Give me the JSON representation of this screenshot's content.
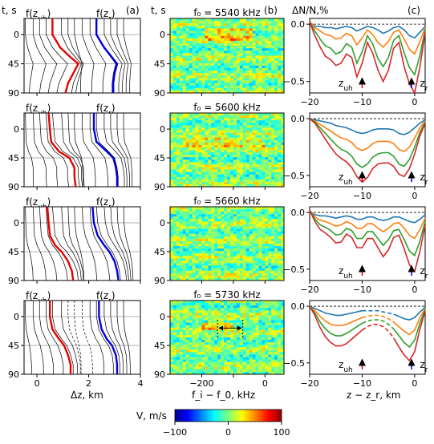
{
  "chart_data": [
    {
      "type": "line",
      "panel": "a",
      "column_label": "(a)",
      "ylabel": "t, s",
      "xlabel": "Δz, km",
      "xlim": [
        -0.5,
        4
      ],
      "ylim": [
        90,
        -25
      ],
      "x_ticks": [
        "0",
        "2",
        "4"
      ],
      "y_ticks": [
        "0",
        "45",
        "90"
      ],
      "legend": [
        {
          "label": "f(z_uh)",
          "color": "#e60000"
        },
        {
          "label": "f(z_r)",
          "color": "#0000dd"
        }
      ],
      "series_note": "black curves: altitude offsets of sounding frequencies; red: upper-hybrid level; blue: reflection level",
      "rows": [
        {
          "z_uh": {
            "t": [
              -25,
              0,
              20,
              35,
              45,
              60,
              75,
              90
            ],
            "x": [
              0.6,
              0.6,
              0.9,
              1.3,
              1.6,
              1.4,
              1.2,
              1.1
            ]
          },
          "z_r": {
            "t": [
              -25,
              0,
              20,
              35,
              45,
              60,
              75,
              90
            ],
            "x": [
              2.3,
              2.3,
              2.6,
              2.9,
              3.1,
              3.0,
              2.95,
              2.95
            ]
          }
        },
        {
          "z_uh": {
            "t": [
              -25,
              0,
              20,
              35,
              45,
              60,
              75,
              90
            ],
            "x": [
              0.45,
              0.5,
              0.55,
              0.85,
              1.25,
              1.45,
              1.45,
              1.5
            ]
          },
          "z_r": {
            "t": [
              -25,
              0,
              20,
              35,
              45,
              60,
              75,
              90
            ],
            "x": [
              2.2,
              2.2,
              2.3,
              2.7,
              2.95,
              3.05,
              3.1,
              3.1
            ]
          }
        },
        {
          "z_uh": {
            "t": [
              -25,
              0,
              20,
              35,
              45,
              60,
              75,
              90
            ],
            "x": [
              0.4,
              0.45,
              0.5,
              0.7,
              0.95,
              1.2,
              1.35,
              1.4
            ]
          },
          "z_r": {
            "t": [
              -25,
              0,
              20,
              35,
              45,
              60,
              75,
              90
            ],
            "x": [
              2.15,
              2.2,
              2.35,
              2.6,
              2.8,
              3.0,
              3.1,
              3.15
            ]
          }
        },
        {
          "z_uh": {
            "t": [
              -25,
              0,
              20,
              35,
              45,
              60,
              75,
              90
            ],
            "x": [
              0.5,
              0.5,
              0.6,
              0.85,
              1.05,
              1.2,
              1.3,
              1.3
            ]
          },
          "z_r": {
            "t": [
              -25,
              0,
              20,
              35,
              45,
              60,
              75,
              90
            ],
            "x": [
              2.4,
              2.4,
              2.5,
              2.7,
              2.9,
              3.05,
              3.1,
              3.1
            ]
          }
        }
      ]
    },
    {
      "type": "heatmap",
      "panel": "b",
      "column_label": "(b)",
      "ylabel": "t, s",
      "xlabel": "f_i − f_0, kHz",
      "xlim": [
        -300,
        60
      ],
      "ylim": [
        90,
        -25
      ],
      "x_ticks": [
        "−200",
        "0"
      ],
      "y_ticks": [
        "0",
        "45",
        "90"
      ],
      "titles": [
        "f₀ = 5540 kHz",
        "f₀ = 5600 kHz",
        "f₀ = 5660 kHz",
        "f₀ = 5730 kHz"
      ],
      "colorbar": {
        "label": "V, m/s",
        "min": -100,
        "max": 100,
        "ticks": [
          "−100",
          "0",
          "100"
        ]
      },
      "annotation": "double arrow spanning f_i − f_0 ≈ −150 to −70 kHz at t ≈ 18 s (row 4)"
    },
    {
      "type": "line",
      "panel": "c",
      "column_label": "(c)",
      "ylabel": "ΔN/N,%",
      "xlabel": "z − z_r, km",
      "xlim": [
        -20,
        2
      ],
      "ylim": [
        0.05,
        -0.6
      ],
      "x_ticks": [
        "−20",
        "−10",
        "0"
      ],
      "y_ticks": [
        "0.0",
        "−0.5"
      ],
      "markers": [
        {
          "label": "z_uh",
          "color": "#e60000"
        },
        {
          "label": "z_r",
          "color": "#0000dd"
        }
      ],
      "series_colors": [
        "#1f77b4",
        "#ff7f0e",
        "#2ca02c",
        "#d62728"
      ],
      "x": [
        -20,
        -19,
        -18,
        -17,
        -16,
        -15,
        -14,
        -13,
        -12,
        -11,
        -10,
        -9,
        -8,
        -7,
        -6,
        -5,
        -4,
        -3,
        -2,
        -1,
        0,
        1,
        2
      ],
      "rows": [
        {
          "series": [
            [
              0.02,
              -0.02,
              -0.02,
              -0.03,
              -0.03,
              -0.04,
              -0.03,
              -0.02,
              -0.03,
              -0.06,
              -0.04,
              -0.02,
              -0.03,
              -0.05,
              -0.08,
              -0.06,
              -0.03,
              -0.02,
              -0.05,
              -0.1,
              -0.12,
              -0.07,
              -0.02
            ],
            [
              0.02,
              -0.03,
              -0.06,
              -0.09,
              -0.1,
              -0.13,
              -0.12,
              -0.08,
              -0.1,
              -0.18,
              -0.12,
              -0.05,
              -0.09,
              -0.16,
              -0.2,
              -0.15,
              -0.07,
              -0.05,
              -0.13,
              -0.22,
              -0.26,
              -0.15,
              -0.03
            ],
            [
              0.02,
              -0.06,
              -0.13,
              -0.19,
              -0.21,
              -0.26,
              -0.24,
              -0.17,
              -0.2,
              -0.34,
              -0.24,
              -0.1,
              -0.17,
              -0.3,
              -0.37,
              -0.29,
              -0.14,
              -0.1,
              -0.25,
              -0.38,
              -0.44,
              -0.27,
              -0.05
            ],
            [
              0.02,
              -0.1,
              -0.2,
              -0.28,
              -0.31,
              -0.36,
              -0.34,
              -0.26,
              -0.29,
              -0.46,
              -0.34,
              -0.16,
              -0.25,
              -0.4,
              -0.5,
              -0.4,
              -0.21,
              -0.16,
              -0.37,
              -0.52,
              -0.6,
              -0.37,
              -0.07
            ]
          ]
        },
        {
          "series": [
            [
              0.0,
              -0.01,
              -0.02,
              -0.03,
              -0.04,
              -0.06,
              -0.07,
              -0.08,
              -0.1,
              -0.12,
              -0.13,
              -0.12,
              -0.1,
              -0.09,
              -0.09,
              -0.09,
              -0.1,
              -0.13,
              -0.14,
              -0.12,
              -0.08,
              -0.04,
              -0.01
            ],
            [
              0.0,
              -0.02,
              -0.05,
              -0.08,
              -0.11,
              -0.14,
              -0.17,
              -0.18,
              -0.21,
              -0.26,
              -0.28,
              -0.26,
              -0.22,
              -0.2,
              -0.2,
              -0.2,
              -0.22,
              -0.27,
              -0.29,
              -0.25,
              -0.17,
              -0.08,
              -0.02
            ],
            [
              0.0,
              -0.03,
              -0.08,
              -0.13,
              -0.18,
              -0.23,
              -0.27,
              -0.29,
              -0.33,
              -0.4,
              -0.43,
              -0.4,
              -0.34,
              -0.31,
              -0.3,
              -0.3,
              -0.33,
              -0.4,
              -0.42,
              -0.36,
              -0.25,
              -0.12,
              -0.03
            ],
            [
              0.0,
              -0.04,
              -0.11,
              -0.18,
              -0.25,
              -0.31,
              -0.35,
              -0.38,
              -0.43,
              -0.51,
              -0.56,
              -0.52,
              -0.44,
              -0.4,
              -0.39,
              -0.39,
              -0.42,
              -0.49,
              -0.51,
              -0.44,
              -0.31,
              -0.15,
              -0.04
            ]
          ]
        },
        {
          "series": [
            [
              0.01,
              -0.02,
              -0.03,
              -0.03,
              -0.04,
              -0.05,
              -0.04,
              -0.03,
              -0.04,
              -0.06,
              -0.06,
              -0.04,
              -0.04,
              -0.06,
              -0.07,
              -0.06,
              -0.04,
              -0.04,
              -0.06,
              -0.08,
              -0.09,
              -0.06,
              -0.02
            ],
            [
              0.02,
              -0.04,
              -0.07,
              -0.08,
              -0.1,
              -0.12,
              -0.11,
              -0.08,
              -0.1,
              -0.14,
              -0.14,
              -0.1,
              -0.1,
              -0.14,
              -0.17,
              -0.14,
              -0.1,
              -0.09,
              -0.14,
              -0.2,
              -0.23,
              -0.15,
              -0.05
            ],
            [
              0.02,
              -0.06,
              -0.11,
              -0.13,
              -0.16,
              -0.2,
              -0.19,
              -0.14,
              -0.16,
              -0.23,
              -0.23,
              -0.17,
              -0.17,
              -0.23,
              -0.29,
              -0.24,
              -0.16,
              -0.15,
              -0.24,
              -0.34,
              -0.38,
              -0.25,
              -0.08
            ],
            [
              0.02,
              -0.08,
              -0.15,
              -0.18,
              -0.22,
              -0.27,
              -0.26,
              -0.19,
              -0.22,
              -0.31,
              -0.31,
              -0.23,
              -0.23,
              -0.31,
              -0.39,
              -0.33,
              -0.22,
              -0.2,
              -0.32,
              -0.46,
              -0.52,
              -0.34,
              -0.11
            ]
          ]
        },
        {
          "dashed_range": [
            -10,
            -4
          ],
          "series": [
            [
              0.0,
              -0.02,
              -0.04,
              -0.06,
              -0.07,
              -0.08,
              -0.08,
              -0.07,
              -0.06,
              -0.05,
              -0.04,
              -0.04,
              -0.04,
              -0.04,
              -0.05,
              -0.06,
              -0.07,
              -0.09,
              -0.11,
              -0.12,
              -0.1,
              -0.05,
              -0.01
            ],
            [
              0.0,
              -0.04,
              -0.09,
              -0.13,
              -0.16,
              -0.17,
              -0.17,
              -0.16,
              -0.14,
              -0.12,
              -0.1,
              -0.09,
              -0.08,
              -0.08,
              -0.09,
              -0.11,
              -0.14,
              -0.18,
              -0.22,
              -0.25,
              -0.21,
              -0.1,
              -0.02
            ],
            [
              0.0,
              -0.06,
              -0.14,
              -0.2,
              -0.24,
              -0.26,
              -0.26,
              -0.24,
              -0.21,
              -0.18,
              -0.15,
              -0.13,
              -0.12,
              -0.12,
              -0.13,
              -0.16,
              -0.2,
              -0.26,
              -0.32,
              -0.36,
              -0.3,
              -0.15,
              -0.03
            ],
            [
              0.0,
              -0.08,
              -0.19,
              -0.27,
              -0.32,
              -0.35,
              -0.35,
              -0.33,
              -0.29,
              -0.25,
              -0.21,
              -0.18,
              -0.16,
              -0.16,
              -0.18,
              -0.22,
              -0.28,
              -0.36,
              -0.43,
              -0.48,
              -0.4,
              -0.2,
              -0.04
            ]
          ]
        }
      ]
    }
  ]
}
